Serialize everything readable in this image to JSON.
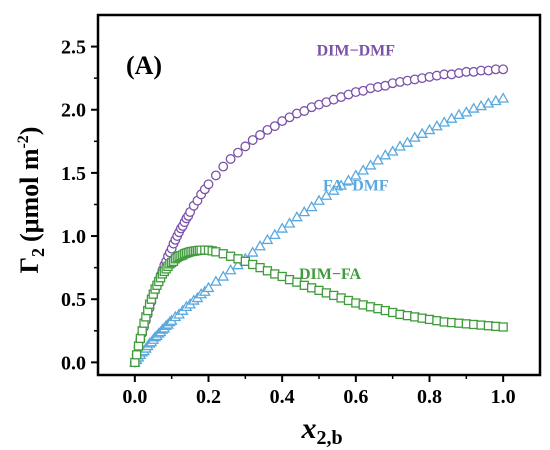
{
  "chart_data": {
    "type": "scatter",
    "panel_label": "(A)",
    "xlabel_main": "x",
    "xlabel_sub": "2,b",
    "ylabel_main": "Γ",
    "ylabel_sub": "2",
    "ylabel_unit": "(μmol m",
    "ylabel_unit_sup": "-2",
    "ylabel_close": ")",
    "xlim": [
      -0.1,
      1.1
    ],
    "ylim": [
      -0.1,
      2.75
    ],
    "xticks": [
      0.0,
      0.2,
      0.4,
      0.6,
      0.8,
      1.0
    ],
    "xtick_labels": [
      "0.0",
      "0.2",
      "0.4",
      "0.6",
      "0.8",
      "1.0"
    ],
    "yticks": [
      0.0,
      0.5,
      1.0,
      1.5,
      2.0,
      2.5
    ],
    "ytick_labels": [
      "0.0",
      "0.5",
      "1.0",
      "1.5",
      "2.0",
      "2.5"
    ],
    "grid": false,
    "legend": "none",
    "series": [
      {
        "name": "DIM−DMF",
        "color": "#7a52a8",
        "marker": "circle",
        "x": [
          0.0,
          0.005,
          0.01,
          0.015,
          0.02,
          0.025,
          0.03,
          0.035,
          0.04,
          0.045,
          0.05,
          0.055,
          0.06,
          0.065,
          0.07,
          0.075,
          0.08,
          0.085,
          0.09,
          0.095,
          0.1,
          0.105,
          0.11,
          0.115,
          0.12,
          0.125,
          0.13,
          0.135,
          0.14,
          0.145,
          0.15,
          0.16,
          0.17,
          0.18,
          0.19,
          0.2,
          0.22,
          0.24,
          0.26,
          0.28,
          0.3,
          0.32,
          0.34,
          0.36,
          0.38,
          0.4,
          0.42,
          0.44,
          0.46,
          0.48,
          0.5,
          0.52,
          0.54,
          0.56,
          0.58,
          0.6,
          0.62,
          0.64,
          0.66,
          0.68,
          0.7,
          0.72,
          0.74,
          0.76,
          0.78,
          0.8,
          0.82,
          0.84,
          0.86,
          0.88,
          0.9,
          0.92,
          0.94,
          0.96,
          0.98,
          1.0
        ],
        "y": [
          0.0,
          0.06,
          0.12,
          0.18,
          0.23,
          0.28,
          0.33,
          0.38,
          0.43,
          0.48,
          0.53,
          0.57,
          0.61,
          0.65,
          0.69,
          0.73,
          0.77,
          0.8,
          0.84,
          0.87,
          0.9,
          0.94,
          0.97,
          1.0,
          1.03,
          1.06,
          1.08,
          1.11,
          1.14,
          1.16,
          1.19,
          1.24,
          1.28,
          1.33,
          1.37,
          1.41,
          1.48,
          1.55,
          1.61,
          1.66,
          1.71,
          1.76,
          1.8,
          1.84,
          1.87,
          1.91,
          1.94,
          1.97,
          1.99,
          2.02,
          2.04,
          2.06,
          2.08,
          2.1,
          2.12,
          2.14,
          2.15,
          2.17,
          2.18,
          2.19,
          2.21,
          2.22,
          2.23,
          2.24,
          2.25,
          2.26,
          2.27,
          2.28,
          2.28,
          2.29,
          2.3,
          2.3,
          2.31,
          2.31,
          2.32,
          2.32
        ]
      },
      {
        "name": "FA−DMF",
        "color": "#5aa9de",
        "marker": "triangle",
        "x": [
          0.0,
          0.005,
          0.01,
          0.015,
          0.02,
          0.025,
          0.03,
          0.035,
          0.04,
          0.045,
          0.05,
          0.055,
          0.06,
          0.065,
          0.07,
          0.075,
          0.08,
          0.085,
          0.09,
          0.095,
          0.1,
          0.11,
          0.12,
          0.13,
          0.14,
          0.15,
          0.16,
          0.17,
          0.18,
          0.19,
          0.2,
          0.22,
          0.24,
          0.26,
          0.28,
          0.3,
          0.32,
          0.34,
          0.36,
          0.38,
          0.4,
          0.42,
          0.44,
          0.46,
          0.48,
          0.5,
          0.52,
          0.54,
          0.56,
          0.58,
          0.6,
          0.62,
          0.64,
          0.66,
          0.68,
          0.7,
          0.72,
          0.74,
          0.76,
          0.78,
          0.8,
          0.82,
          0.84,
          0.86,
          0.88,
          0.9,
          0.92,
          0.94,
          0.96,
          0.98,
          1.0
        ],
        "y": [
          0.0,
          0.02,
          0.04,
          0.06,
          0.08,
          0.09,
          0.11,
          0.13,
          0.15,
          0.16,
          0.18,
          0.2,
          0.21,
          0.23,
          0.24,
          0.26,
          0.27,
          0.29,
          0.3,
          0.32,
          0.33,
          0.36,
          0.38,
          0.41,
          0.44,
          0.46,
          0.49,
          0.51,
          0.54,
          0.56,
          0.59,
          0.64,
          0.68,
          0.73,
          0.77,
          0.82,
          0.87,
          0.92,
          0.97,
          1.01,
          1.06,
          1.1,
          1.15,
          1.19,
          1.23,
          1.28,
          1.32,
          1.36,
          1.4,
          1.44,
          1.48,
          1.52,
          1.56,
          1.6,
          1.64,
          1.67,
          1.71,
          1.74,
          1.78,
          1.81,
          1.84,
          1.87,
          1.9,
          1.93,
          1.96,
          1.98,
          2.01,
          2.03,
          2.05,
          2.07,
          2.09
        ]
      },
      {
        "name": "DIM−FA",
        "color": "#3f9b3c",
        "marker": "square",
        "x": [
          0.0,
          0.005,
          0.01,
          0.015,
          0.02,
          0.025,
          0.03,
          0.035,
          0.04,
          0.045,
          0.05,
          0.055,
          0.06,
          0.065,
          0.07,
          0.075,
          0.08,
          0.085,
          0.09,
          0.095,
          0.1,
          0.105,
          0.11,
          0.115,
          0.12,
          0.125,
          0.13,
          0.135,
          0.14,
          0.145,
          0.15,
          0.155,
          0.16,
          0.165,
          0.17,
          0.175,
          0.18,
          0.19,
          0.2,
          0.21,
          0.22,
          0.24,
          0.26,
          0.28,
          0.3,
          0.32,
          0.34,
          0.36,
          0.38,
          0.4,
          0.42,
          0.44,
          0.46,
          0.48,
          0.5,
          0.52,
          0.54,
          0.56,
          0.58,
          0.6,
          0.62,
          0.64,
          0.66,
          0.68,
          0.7,
          0.72,
          0.74,
          0.76,
          0.78,
          0.8,
          0.82,
          0.84,
          0.86,
          0.88,
          0.9,
          0.92,
          0.94,
          0.96,
          0.98,
          1.0
        ],
        "y": [
          0.0,
          0.06,
          0.13,
          0.19,
          0.25,
          0.31,
          0.36,
          0.41,
          0.46,
          0.5,
          0.54,
          0.58,
          0.61,
          0.64,
          0.67,
          0.7,
          0.72,
          0.74,
          0.76,
          0.78,
          0.79,
          0.8,
          0.82,
          0.83,
          0.84,
          0.845,
          0.85,
          0.86,
          0.865,
          0.87,
          0.875,
          0.878,
          0.88,
          0.883,
          0.885,
          0.887,
          0.888,
          0.889,
          0.888,
          0.883,
          0.875,
          0.86,
          0.84,
          0.82,
          0.8,
          0.775,
          0.75,
          0.725,
          0.7,
          0.68,
          0.655,
          0.635,
          0.61,
          0.59,
          0.57,
          0.55,
          0.53,
          0.51,
          0.49,
          0.47,
          0.455,
          0.44,
          0.425,
          0.41,
          0.395,
          0.38,
          0.37,
          0.36,
          0.35,
          0.34,
          0.33,
          0.32,
          0.315,
          0.31,
          0.305,
          0.3,
          0.295,
          0.29,
          0.285,
          0.28
        ]
      }
    ],
    "annotations": [
      {
        "text": "DIM−DMF",
        "color": "#7a52a8",
        "x": 0.6,
        "y": 2.43
      },
      {
        "text": "FA−DMF",
        "color": "#5aa9de",
        "x": 0.6,
        "y": 1.36
      },
      {
        "text": "DIM−FA",
        "color": "#3f9b3c",
        "x": 0.53,
        "y": 0.66
      }
    ]
  }
}
